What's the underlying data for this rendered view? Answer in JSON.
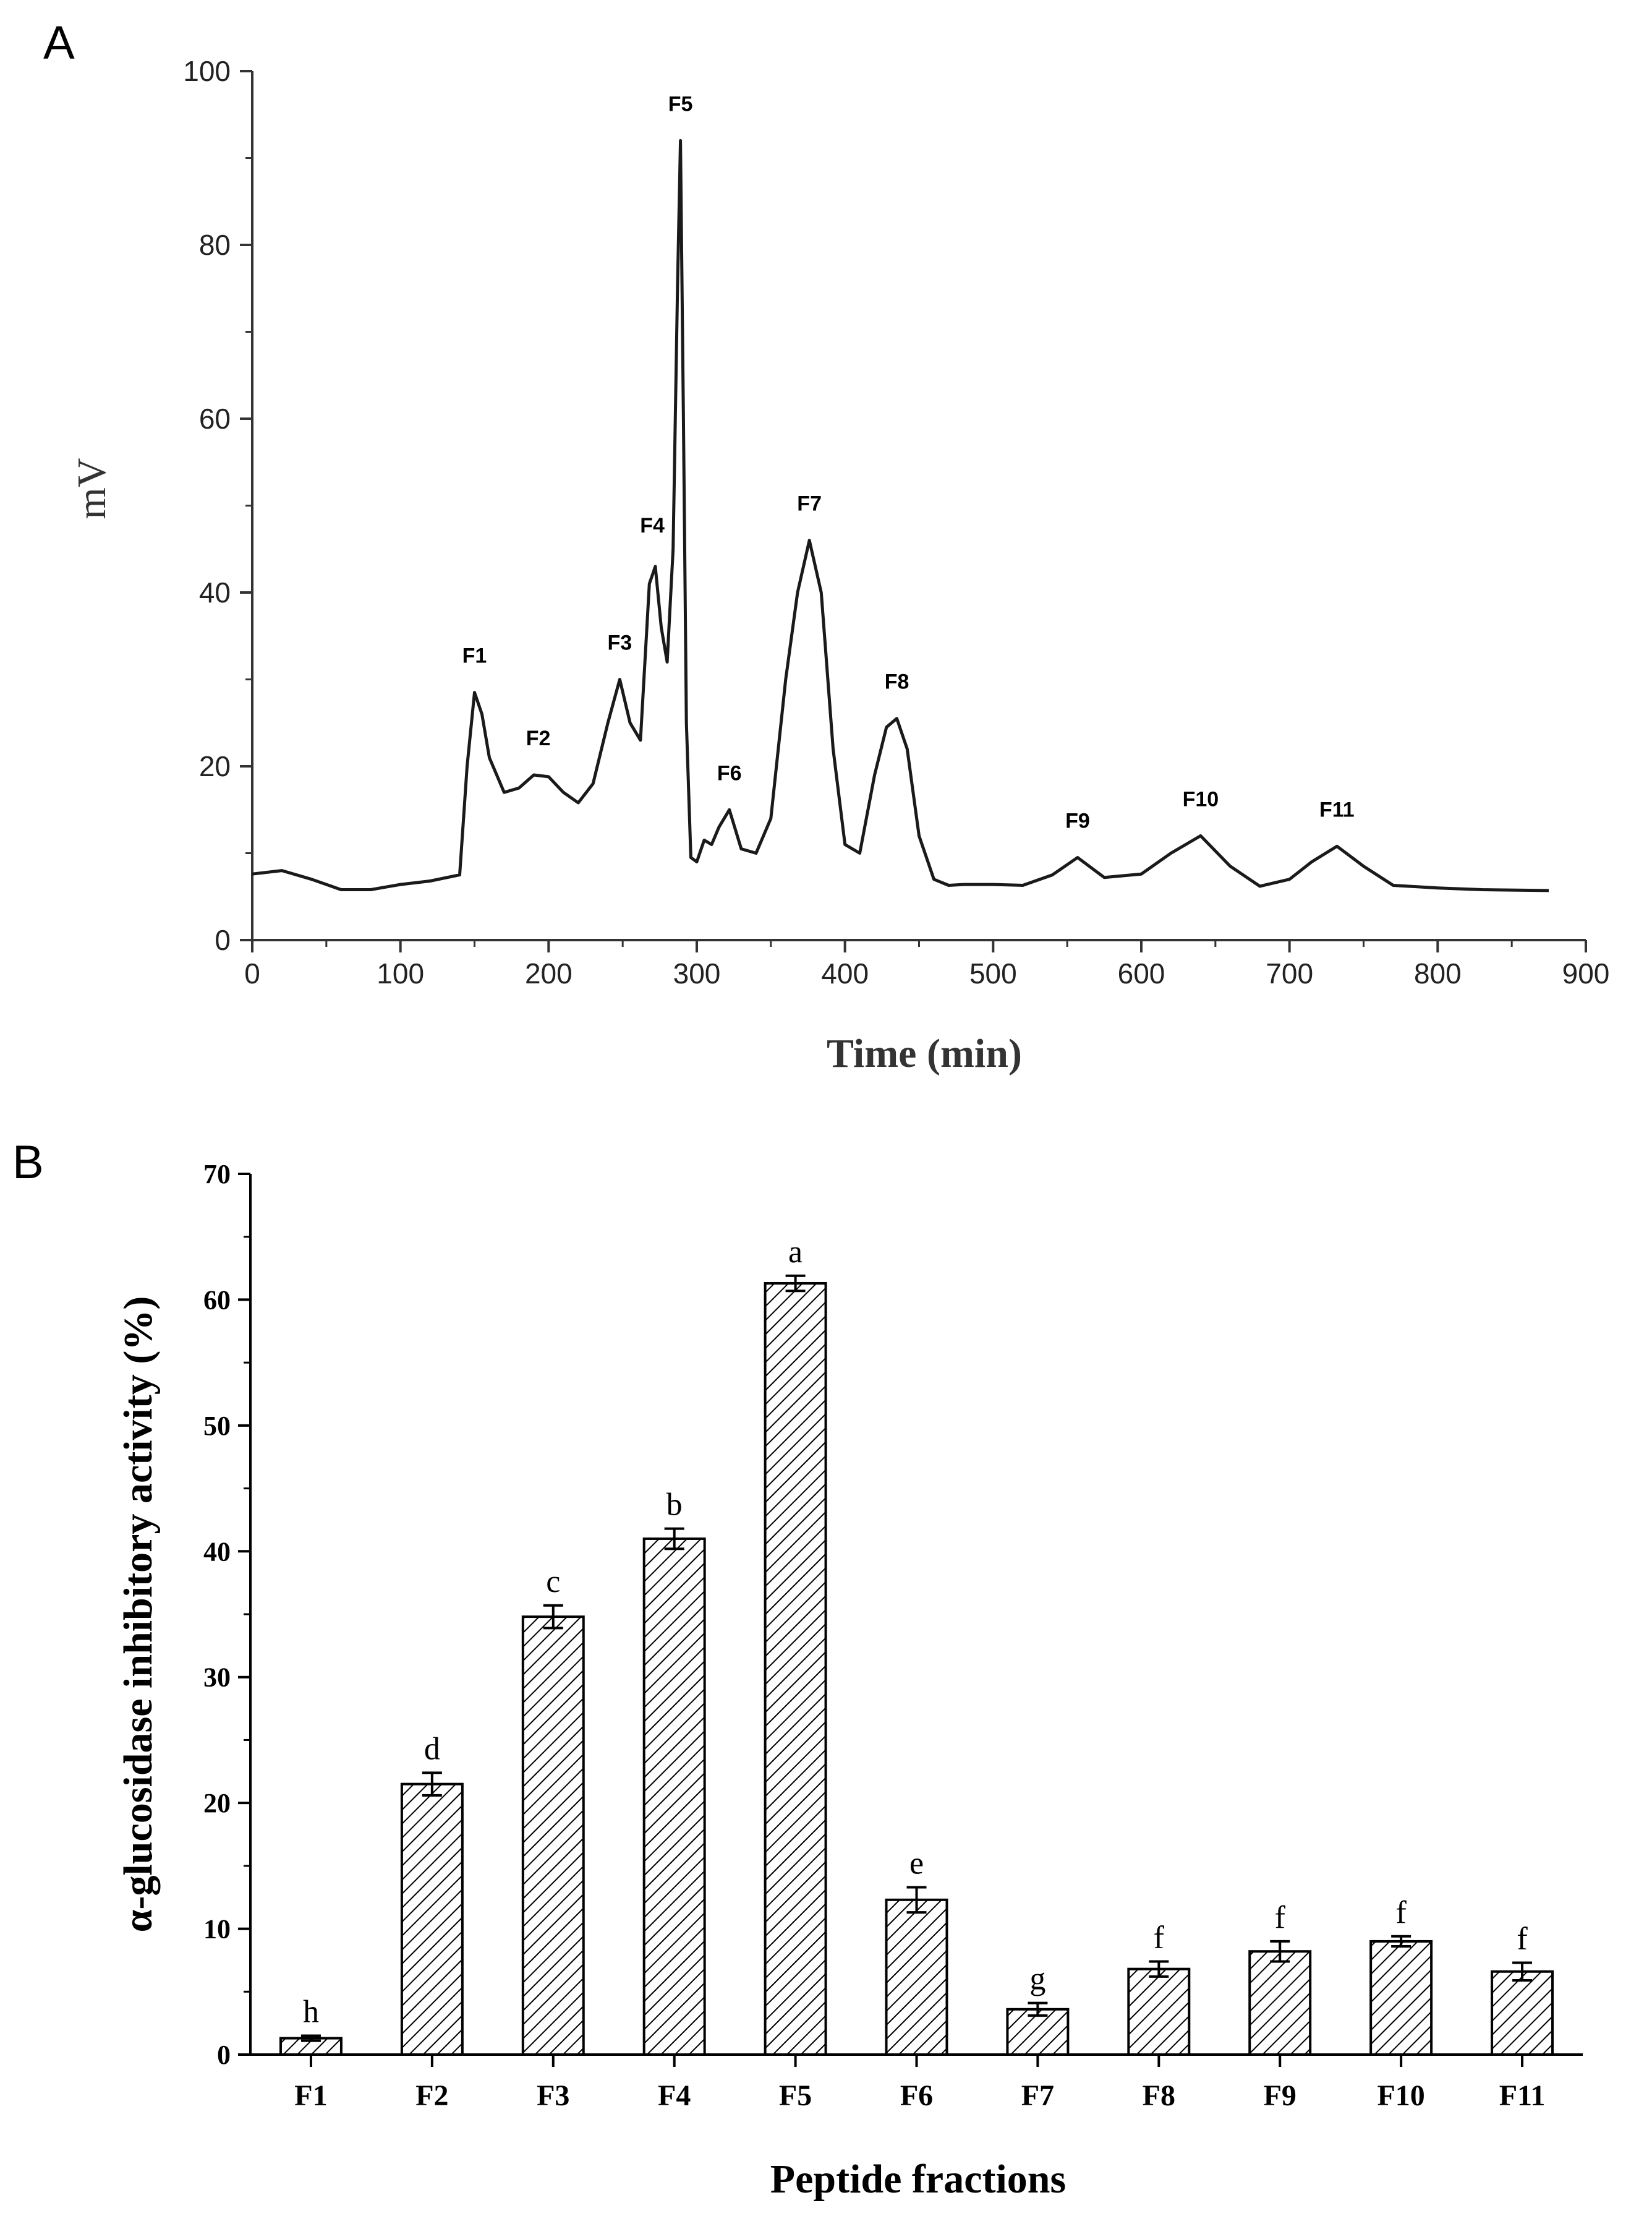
{
  "figure": {
    "panel_a_label": "A",
    "panel_b_label": "B"
  },
  "chart_data": [
    {
      "type": "line",
      "panel": "A",
      "title": "",
      "xlabel": "Time (min)",
      "ylabel": "mV",
      "xlim": [
        0,
        900
      ],
      "ylim": [
        0,
        100
      ],
      "xticks": [
        0,
        100,
        200,
        300,
        400,
        500,
        600,
        700,
        800,
        900
      ],
      "yticks": [
        0,
        20,
        40,
        60,
        80,
        100
      ],
      "line_color": "#1a1a1a",
      "series": [
        {
          "name": "chromatogram",
          "x": [
            0,
            20,
            40,
            60,
            80,
            100,
            120,
            140,
            145,
            150,
            155,
            160,
            170,
            180,
            190,
            200,
            210,
            220,
            230,
            240,
            248,
            255,
            262,
            268,
            272,
            276,
            280,
            284,
            287,
            289,
            291,
            293,
            296,
            300,
            305,
            310,
            315,
            322,
            330,
            340,
            350,
            360,
            368,
            376,
            384,
            392,
            400,
            410,
            420,
            428,
            435,
            442,
            450,
            460,
            470,
            480,
            500,
            520,
            540,
            557,
            575,
            600,
            620,
            640,
            660,
            680,
            700,
            715,
            732,
            750,
            770,
            800,
            830,
            875
          ],
          "y": [
            7.6,
            8.0,
            7.0,
            5.8,
            5.8,
            6.4,
            6.8,
            7.5,
            20.0,
            28.5,
            26.0,
            21.0,
            17.0,
            17.5,
            19.0,
            18.8,
            17.0,
            15.8,
            18.0,
            25.0,
            30.0,
            25.0,
            23.0,
            41.0,
            43.0,
            36.0,
            32.0,
            45.0,
            75.0,
            92.0,
            60.0,
            25.0,
            9.5,
            9.0,
            11.5,
            11.0,
            13.0,
            15.0,
            10.5,
            10.0,
            14.0,
            30.0,
            40.0,
            46.0,
            40.0,
            22.0,
            11.0,
            10.0,
            19.0,
            24.5,
            25.5,
            22.0,
            12.0,
            7.0,
            6.3,
            6.4,
            6.4,
            6.3,
            7.5,
            9.5,
            7.2,
            7.6,
            10.0,
            12.0,
            8.5,
            6.2,
            7.0,
            9.0,
            10.8,
            8.5,
            6.3,
            6.0,
            5.8,
            5.7
          ]
        }
      ],
      "peak_labels": [
        {
          "label": "F1",
          "x": 150,
          "y": 28.5
        },
        {
          "label": "F2",
          "x": 193,
          "y": 19.0
        },
        {
          "label": "F3",
          "x": 248,
          "y": 30.0
        },
        {
          "label": "F4",
          "x": 270,
          "y": 43.5
        },
        {
          "label": "F5",
          "x": 289,
          "y": 92.0
        },
        {
          "label": "F6",
          "x": 322,
          "y": 15.0
        },
        {
          "label": "F7",
          "x": 376,
          "y": 46.0
        },
        {
          "label": "F8",
          "x": 435,
          "y": 25.5
        },
        {
          "label": "F9",
          "x": 557,
          "y": 9.5
        },
        {
          "label": "F10",
          "x": 640,
          "y": 12.0
        },
        {
          "label": "F11",
          "x": 732,
          "y": 10.8
        }
      ]
    },
    {
      "type": "bar",
      "panel": "B",
      "title": "",
      "xlabel": "Peptide fractions",
      "ylabel": "α-glucosidase inhibitory activity (%)",
      "ylim": [
        0,
        70
      ],
      "yticks": [
        0,
        10,
        20,
        30,
        40,
        50,
        60,
        70
      ],
      "categories": [
        "F1",
        "F2",
        "F3",
        "F4",
        "F5",
        "F6",
        "F7",
        "F8",
        "F9",
        "F10",
        "F11"
      ],
      "values": [
        1.3,
        21.5,
        34.8,
        41.0,
        61.3,
        12.3,
        3.6,
        6.8,
        8.2,
        9.0,
        6.6
      ],
      "errors": [
        0.2,
        0.9,
        0.9,
        0.8,
        0.6,
        1.0,
        0.5,
        0.6,
        0.8,
        0.4,
        0.7
      ],
      "significance": [
        "h",
        "d",
        "c",
        "b",
        "a",
        "e",
        "g",
        "f",
        "f",
        "f",
        "f"
      ],
      "bar_fill": "hatched"
    }
  ]
}
